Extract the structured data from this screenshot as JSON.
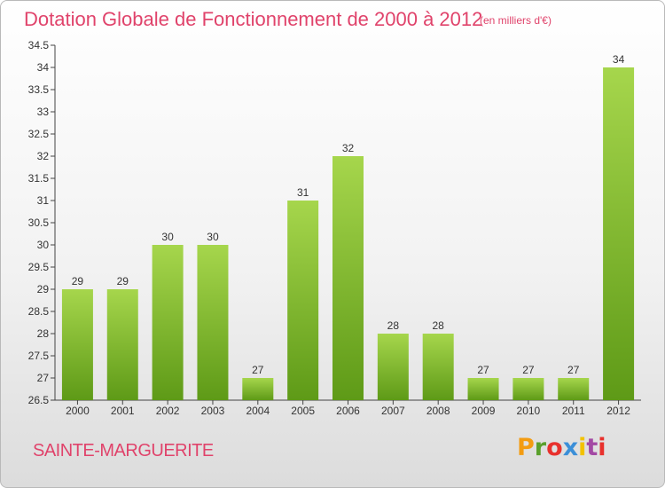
{
  "header": {
    "title": "Dotation Globale de Fonctionnement de 2000 à 2012",
    "subtitle": "(en milliers d'€)"
  },
  "footer": {
    "commune": "SAINTE-MARGUERITE",
    "logo_text": "Proxiti",
    "logo_colors": [
      "#f39c12",
      "#5aa02c",
      "#e8312d",
      "#3b8fd8",
      "#f2c200",
      "#a349a4",
      "#e8312d"
    ]
  },
  "chart_data": {
    "type": "bar",
    "title": "Dotation Globale de Fonctionnement de 2000 à 2012",
    "subtitle": "(en milliers d'€)",
    "categories": [
      "2000",
      "2001",
      "2002",
      "2003",
      "2004",
      "2005",
      "2006",
      "2007",
      "2008",
      "2009",
      "2010",
      "2011",
      "2012"
    ],
    "values": [
      29,
      29,
      30,
      30,
      27,
      31,
      32,
      28,
      28,
      27,
      27,
      27,
      34
    ],
    "value_labels": [
      "29",
      "29",
      "30",
      "30",
      "27",
      "31",
      "32",
      "28",
      "28",
      "27",
      "27",
      "27",
      "34"
    ],
    "ylim": [
      26.5,
      34.5
    ],
    "yticks": [
      26.5,
      27,
      27.5,
      28,
      28.5,
      29,
      29.5,
      30,
      30.5,
      31,
      31.5,
      32,
      32.5,
      33,
      33.5,
      34,
      34.5
    ],
    "ytick_labels": [
      "26.5",
      "27",
      "27.5",
      "28",
      "28.5",
      "29",
      "29.5",
      "30",
      "30.5",
      "31",
      "31.5",
      "32",
      "32.5",
      "33",
      "33.5",
      "34",
      "34.5"
    ],
    "xlabel": "",
    "ylabel": "",
    "grid": false,
    "legend": "none",
    "colors": {
      "bar_light": "#a6d64c",
      "bar_dark": "#5e9a17",
      "axis": "#444444"
    }
  }
}
